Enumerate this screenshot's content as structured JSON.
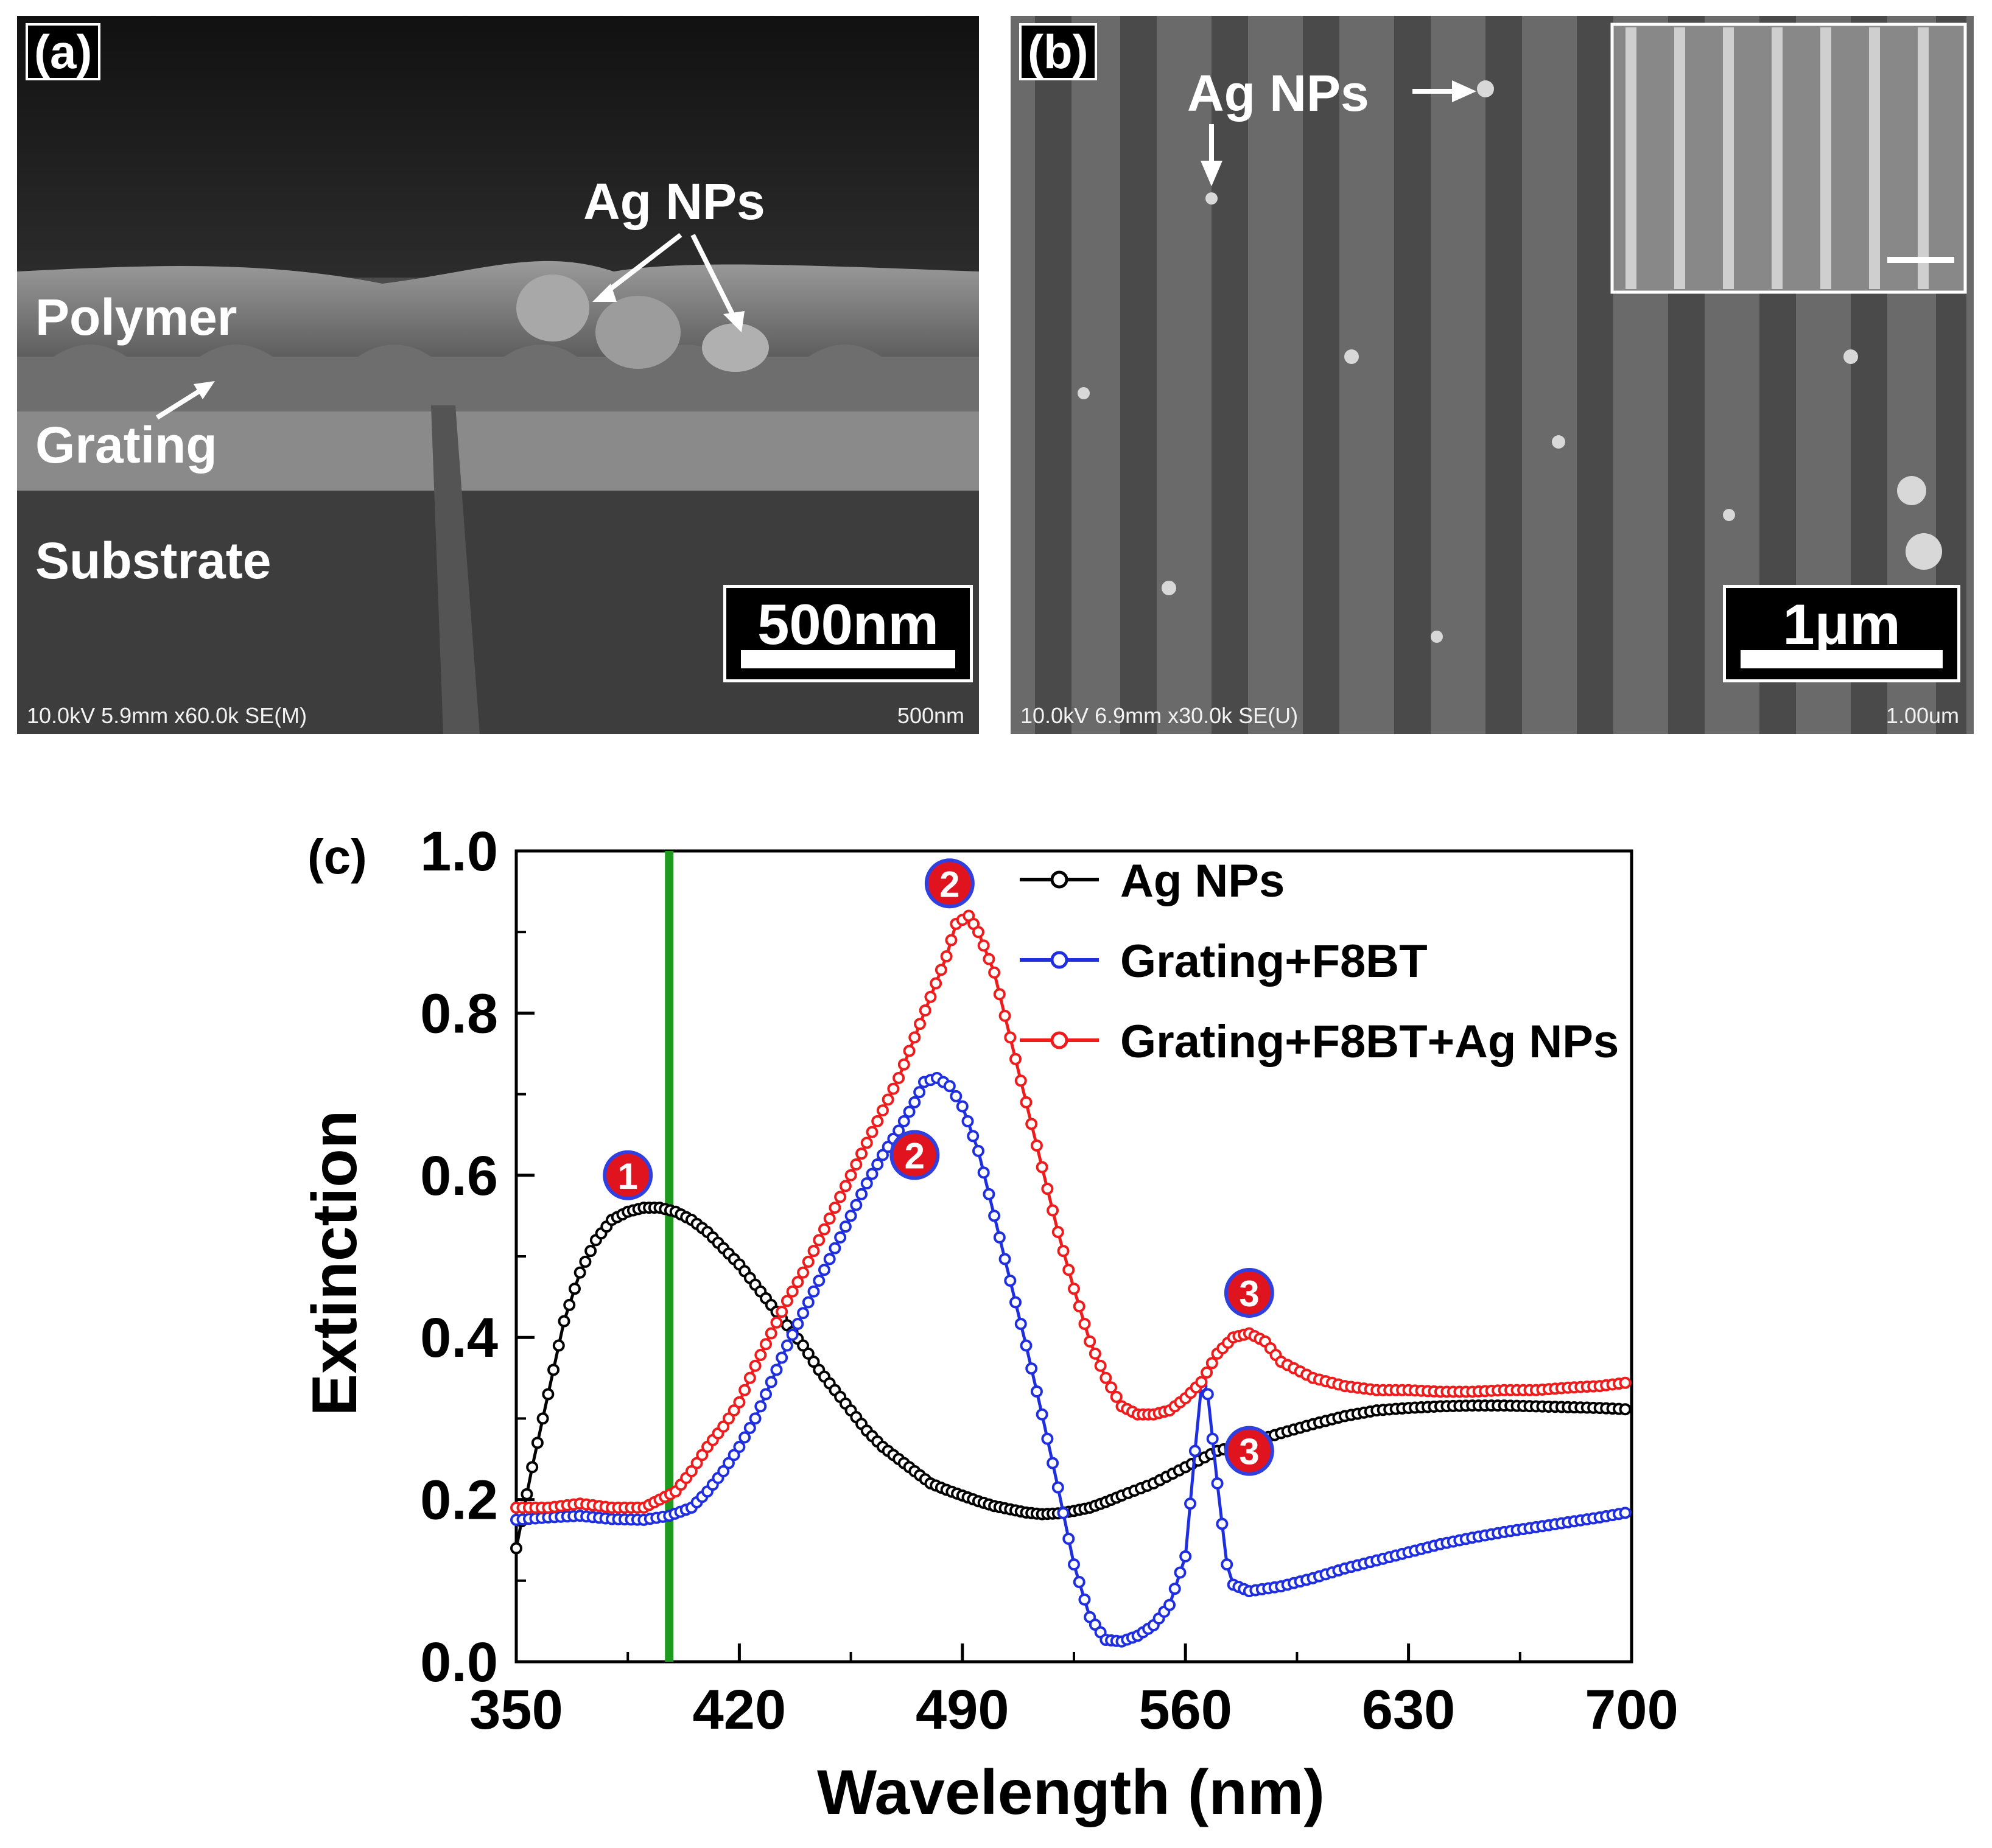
{
  "panel_a": {
    "label": "(a)",
    "annotations": {
      "ag_nps": "Ag NPs",
      "polymer": "Polymer",
      "grating": "Grating",
      "substrate": "Substrate"
    },
    "scale_bar": "500nm",
    "footer_left": "10.0kV 5.9mm x60.0k SE(M)",
    "footer_right": "500nm"
  },
  "panel_b": {
    "label": "(b)",
    "annotations": {
      "ag_nps": "Ag NPs"
    },
    "scale_bar": "1μm",
    "footer_left": "10.0kV 6.9mm x30.0k SE(U)",
    "footer_right": "1.00um"
  },
  "chart_data": {
    "type": "line",
    "panel_label": "(c)",
    "xlabel": "Wavelength (nm)",
    "ylabel": "Extinction",
    "xlim": [
      350,
      700
    ],
    "ylim": [
      0.0,
      1.0
    ],
    "xticks": [
      "350",
      "420",
      "490",
      "560",
      "630",
      "700"
    ],
    "yticks": [
      "0.0",
      "0.2",
      "0.4",
      "0.6",
      "0.8",
      "1.0"
    ],
    "legend_position": "top-right",
    "vertical_line": {
      "x": 398,
      "color": "#1e9a1e"
    },
    "series": [
      {
        "name": "Ag NPs",
        "color": "#000000",
        "x": [
          350,
          355,
          360,
          365,
          370,
          375,
          380,
          385,
          390,
          395,
          400,
          405,
          410,
          415,
          420,
          425,
          430,
          435,
          440,
          445,
          450,
          455,
          460,
          465,
          470,
          475,
          480,
          485,
          490,
          495,
          500,
          505,
          510,
          515,
          520,
          525,
          530,
          535,
          540,
          550,
          560,
          570,
          580,
          590,
          600,
          610,
          620,
          630,
          640,
          650,
          660,
          670,
          680,
          690,
          700
        ],
        "y": [
          0.14,
          0.24,
          0.33,
          0.42,
          0.48,
          0.52,
          0.545,
          0.555,
          0.56,
          0.56,
          0.555,
          0.545,
          0.53,
          0.51,
          0.49,
          0.465,
          0.44,
          0.415,
          0.39,
          0.36,
          0.335,
          0.31,
          0.285,
          0.265,
          0.25,
          0.235,
          0.22,
          0.212,
          0.205,
          0.198,
          0.192,
          0.188,
          0.184,
          0.182,
          0.183,
          0.186,
          0.19,
          0.197,
          0.205,
          0.22,
          0.24,
          0.26,
          0.27,
          0.282,
          0.293,
          0.303,
          0.31,
          0.313,
          0.315,
          0.316,
          0.316,
          0.315,
          0.314,
          0.313,
          0.311
        ]
      },
      {
        "name": "Grating+F8BT",
        "color": "#1f2fe0",
        "x": [
          350,
          360,
          370,
          380,
          390,
          398,
          405,
          410,
          415,
          420,
          425,
          430,
          435,
          440,
          445,
          450,
          455,
          460,
          465,
          470,
          475,
          478,
          482,
          486,
          490,
          495,
          500,
          505,
          510,
          515,
          520,
          525,
          530,
          535,
          540,
          545,
          550,
          555,
          560,
          563,
          565,
          567,
          570,
          573,
          575,
          580,
          590,
          600,
          610,
          620,
          630,
          640,
          650,
          660,
          670,
          680,
          690,
          700
        ],
        "y": [
          0.175,
          0.178,
          0.18,
          0.176,
          0.175,
          0.18,
          0.19,
          0.21,
          0.235,
          0.265,
          0.3,
          0.345,
          0.39,
          0.43,
          0.47,
          0.51,
          0.55,
          0.59,
          0.625,
          0.655,
          0.69,
          0.715,
          0.72,
          0.71,
          0.685,
          0.63,
          0.55,
          0.47,
          0.39,
          0.305,
          0.215,
          0.12,
          0.055,
          0.027,
          0.025,
          0.032,
          0.045,
          0.07,
          0.13,
          0.26,
          0.34,
          0.33,
          0.22,
          0.12,
          0.095,
          0.087,
          0.093,
          0.103,
          0.115,
          0.125,
          0.135,
          0.145,
          0.153,
          0.16,
          0.166,
          0.172,
          0.178,
          0.185
        ]
      },
      {
        "name": "Grating+F8BT+Ag NPs",
        "color": "#ee1c1c",
        "x": [
          350,
          360,
          370,
          380,
          390,
          395,
          400,
          405,
          410,
          415,
          420,
          425,
          430,
          435,
          440,
          445,
          450,
          455,
          460,
          465,
          470,
          475,
          480,
          485,
          488,
          492,
          495,
          500,
          505,
          510,
          515,
          520,
          525,
          530,
          535,
          540,
          545,
          550,
          555,
          560,
          565,
          570,
          575,
          580,
          585,
          590,
          600,
          610,
          620,
          630,
          640,
          650,
          660,
          670,
          680,
          690,
          700
        ],
        "y": [
          0.19,
          0.19,
          0.195,
          0.19,
          0.19,
          0.2,
          0.21,
          0.235,
          0.265,
          0.29,
          0.32,
          0.365,
          0.405,
          0.445,
          0.48,
          0.52,
          0.56,
          0.6,
          0.64,
          0.68,
          0.72,
          0.77,
          0.82,
          0.87,
          0.91,
          0.92,
          0.9,
          0.85,
          0.77,
          0.69,
          0.61,
          0.53,
          0.46,
          0.395,
          0.35,
          0.315,
          0.305,
          0.305,
          0.31,
          0.325,
          0.345,
          0.38,
          0.4,
          0.405,
          0.395,
          0.37,
          0.35,
          0.34,
          0.335,
          0.335,
          0.333,
          0.333,
          0.335,
          0.335,
          0.338,
          0.34,
          0.345
        ]
      }
    ],
    "markers": [
      {
        "label": "1",
        "x": 385,
        "y": 0.6
      },
      {
        "label": "2",
        "x": 486,
        "y": 0.96
      },
      {
        "label": "2",
        "x": 475,
        "y": 0.625
      },
      {
        "label": "3",
        "x": 580,
        "y": 0.455
      },
      {
        "label": "3",
        "x": 580,
        "y": 0.26
      }
    ]
  }
}
